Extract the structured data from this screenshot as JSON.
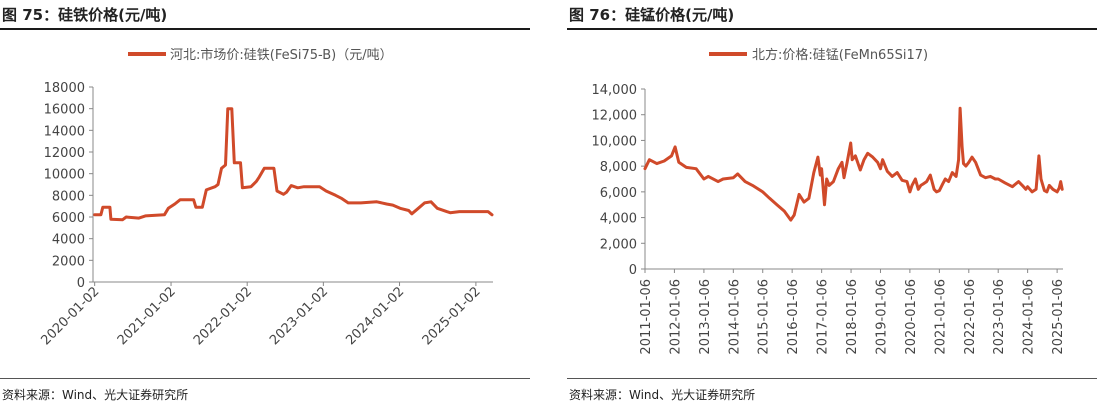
{
  "panels": [
    {
      "figure_title": "图 75：硅铁价格(元/吨)",
      "source": "资料来源：Wind、光大证券研究所"
    },
    {
      "figure_title": "图 76：硅锰价格(元/吨)",
      "source": "资料来源：Wind、光大证券研究所"
    }
  ],
  "chart_data": [
    {
      "type": "line",
      "line_color": "#d04a2a",
      "legend_position": "top",
      "grid": false,
      "ylim": [
        0,
        18000
      ],
      "y_ticks": [
        "0",
        "2000",
        "4000",
        "6000",
        "8000",
        "10000",
        "12000",
        "14000",
        "16000",
        "18000"
      ],
      "x_tick_labels": [
        "2020-01-02",
        "2021-01-02",
        "2022-01-02",
        "2023-01-02",
        "2024-01-02",
        "2025-01-02"
      ],
      "series": [
        {
          "name": "河北:市场价:硅铁(FeSi75-B)（元/吨）",
          "points": [
            [
              "2020-01-02",
              6200
            ],
            [
              "2020-02-01",
              6200
            ],
            [
              "2020-02-10",
              6900
            ],
            [
              "2020-03-15",
              6900
            ],
            [
              "2020-03-20",
              5800
            ],
            [
              "2020-05-15",
              5750
            ],
            [
              "2020-06-01",
              6000
            ],
            [
              "2020-08-01",
              5900
            ],
            [
              "2020-09-01",
              6100
            ],
            [
              "2020-12-01",
              6200
            ],
            [
              "2020-12-20",
              6800
            ],
            [
              "2021-01-20",
              7200
            ],
            [
              "2021-02-15",
              7600
            ],
            [
              "2021-04-20",
              7600
            ],
            [
              "2021-05-01",
              6900
            ],
            [
              "2021-06-01",
              6900
            ],
            [
              "2021-06-20",
              8500
            ],
            [
              "2021-08-01",
              8800
            ],
            [
              "2021-08-15",
              9000
            ],
            [
              "2021-09-01",
              10500
            ],
            [
              "2021-09-20",
              10800
            ],
            [
              "2021-10-01",
              16000
            ],
            [
              "2021-10-20",
              16000
            ],
            [
              "2021-11-01",
              11000
            ],
            [
              "2021-12-01",
              11000
            ],
            [
              "2021-12-10",
              8700
            ],
            [
              "2022-01-20",
              8800
            ],
            [
              "2022-02-15",
              9300
            ],
            [
              "2022-03-01",
              9700
            ],
            [
              "2022-03-25",
              10500
            ],
            [
              "2022-05-10",
              10500
            ],
            [
              "2022-05-25",
              8400
            ],
            [
              "2022-06-25",
              8100
            ],
            [
              "2022-07-10",
              8300
            ],
            [
              "2022-08-01",
              8900
            ],
            [
              "2022-09-01",
              8700
            ],
            [
              "2022-10-01",
              8800
            ],
            [
              "2022-12-15",
              8800
            ],
            [
              "2023-01-15",
              8400
            ],
            [
              "2023-03-01",
              8000
            ],
            [
              "2023-04-01",
              7700
            ],
            [
              "2023-05-01",
              7300
            ],
            [
              "2023-07-01",
              7300
            ],
            [
              "2023-09-15",
              7400
            ],
            [
              "2023-11-01",
              7200
            ],
            [
              "2023-12-01",
              7100
            ],
            [
              "2024-01-05",
              6800
            ],
            [
              "2024-02-15",
              6600
            ],
            [
              "2024-03-01",
              6300
            ],
            [
              "2024-04-01",
              6800
            ],
            [
              "2024-05-01",
              7300
            ],
            [
              "2024-06-01",
              7400
            ],
            [
              "2024-07-01",
              6800
            ],
            [
              "2024-08-15",
              6500
            ],
            [
              "2024-09-01",
              6400
            ],
            [
              "2024-10-15",
              6500
            ],
            [
              "2024-12-01",
              6500
            ],
            [
              "2025-02-01",
              6500
            ],
            [
              "2025-03-01",
              6500
            ],
            [
              "2025-03-20",
              6200
            ]
          ]
        }
      ]
    },
    {
      "type": "line",
      "line_color": "#d04a2a",
      "legend_position": "top",
      "grid": false,
      "ylim": [
        0,
        14000
      ],
      "y_ticks": [
        "0",
        "2,000",
        "4,000",
        "6,000",
        "8,000",
        "10,000",
        "12,000",
        "14,000"
      ],
      "x_tick_labels": [
        "2011-01-06",
        "2012-01-06",
        "2013-01-06",
        "2014-01-06",
        "2015-01-06",
        "2016-01-06",
        "2017-01-06",
        "2018-01-06",
        "2019-01-06",
        "2020-01-06",
        "2021-01-06",
        "2022-01-06",
        "2023-01-06",
        "2024-01-06",
        "2025-01-06"
      ],
      "series": [
        {
          "name": "北方:价格:硅锰(FeMn65Si17)",
          "points": [
            [
              "2011-01-06",
              7800
            ],
            [
              "2011-03-01",
              8500
            ],
            [
              "2011-06-01",
              8200
            ],
            [
              "2011-09-01",
              8400
            ],
            [
              "2011-12-01",
              8800
            ],
            [
              "2012-01-15",
              9500
            ],
            [
              "2012-03-01",
              8300
            ],
            [
              "2012-06-01",
              7900
            ],
            [
              "2012-10-01",
              7800
            ],
            [
              "2013-01-06",
              7000
            ],
            [
              "2013-03-01",
              7200
            ],
            [
              "2013-07-01",
              6800
            ],
            [
              "2013-09-01",
              7000
            ],
            [
              "2014-01-06",
              7100
            ],
            [
              "2014-03-01",
              7400
            ],
            [
              "2014-06-01",
              6800
            ],
            [
              "2014-09-01",
              6500
            ],
            [
              "2015-01-06",
              6000
            ],
            [
              "2015-04-01",
              5500
            ],
            [
              "2015-07-01",
              5000
            ],
            [
              "2015-10-01",
              4500
            ],
            [
              "2015-12-20",
              3800
            ],
            [
              "2016-02-01",
              4200
            ],
            [
              "2016-04-01",
              5800
            ],
            [
              "2016-06-01",
              5200
            ],
            [
              "2016-08-01",
              5500
            ],
            [
              "2016-10-01",
              7500
            ],
            [
              "2016-11-20",
              8700
            ],
            [
              "2016-12-20",
              7300
            ],
            [
              "2017-01-06",
              7800
            ],
            [
              "2017-02-10",
              5000
            ],
            [
              "2017-03-10",
              7000
            ],
            [
              "2017-04-10",
              6500
            ],
            [
              "2017-06-01",
              6800
            ],
            [
              "2017-08-01",
              7800
            ],
            [
              "2017-09-15",
              8300
            ],
            [
              "2017-10-10",
              7100
            ],
            [
              "2017-11-15",
              8200
            ],
            [
              "2018-01-01",
              9800
            ],
            [
              "2018-01-20",
              8500
            ],
            [
              "2018-03-01",
              8800
            ],
            [
              "2018-05-01",
              7700
            ],
            [
              "2018-06-15",
              8500
            ],
            [
              "2018-08-01",
              9000
            ],
            [
              "2018-10-01",
              8700
            ],
            [
              "2018-12-01",
              8300
            ],
            [
              "2019-01-06",
              7800
            ],
            [
              "2019-02-01",
              8500
            ],
            [
              "2019-04-01",
              7600
            ],
            [
              "2019-06-01",
              7200
            ],
            [
              "2019-08-01",
              7500
            ],
            [
              "2019-10-01",
              6900
            ],
            [
              "2019-12-01",
              6800
            ],
            [
              "2020-01-06",
              6000
            ],
            [
              "2020-02-01",
              6500
            ],
            [
              "2020-03-15",
              7000
            ],
            [
              "2020-04-20",
              6200
            ],
            [
              "2020-05-20",
              6500
            ],
            [
              "2020-06-15",
              6600
            ],
            [
              "2020-08-01",
              6800
            ],
            [
              "2020-09-15",
              7300
            ],
            [
              "2020-11-01",
              6200
            ],
            [
              "2020-12-01",
              6000
            ],
            [
              "2021-01-06",
              6100
            ],
            [
              "2021-02-15",
              6600
            ],
            [
              "2021-03-20",
              7000
            ],
            [
              "2021-05-01",
              6800
            ],
            [
              "2021-06-15",
              7500
            ],
            [
              "2021-08-01",
              7200
            ],
            [
              "2021-09-01",
              8500
            ],
            [
              "2021-09-20",
              12500
            ],
            [
              "2021-10-15",
              9500
            ],
            [
              "2021-11-01",
              8200
            ],
            [
              "2021-12-01",
              8000
            ],
            [
              "2022-01-06",
              8300
            ],
            [
              "2022-02-15",
              8700
            ],
            [
              "2022-04-01",
              8300
            ],
            [
              "2022-06-01",
              7300
            ],
            [
              "2022-08-01",
              7100
            ],
            [
              "2022-10-01",
              7200
            ],
            [
              "2022-12-01",
              7000
            ],
            [
              "2023-01-06",
              7000
            ],
            [
              "2023-04-01",
              6700
            ],
            [
              "2023-07-01",
              6400
            ],
            [
              "2023-09-15",
              6800
            ],
            [
              "2023-11-01",
              6500
            ],
            [
              "2023-12-15",
              6200
            ],
            [
              "2024-01-06",
              6400
            ],
            [
              "2024-03-01",
              6000
            ],
            [
              "2024-04-20",
              6200
            ],
            [
              "2024-05-25",
              8800
            ],
            [
              "2024-06-20",
              7000
            ],
            [
              "2024-08-01",
              6100
            ],
            [
              "2024-09-01",
              6000
            ],
            [
              "2024-10-01",
              6500
            ],
            [
              "2024-11-15",
              6200
            ],
            [
              "2025-01-06",
              6000
            ],
            [
              "2025-02-01",
              6300
            ],
            [
              "2025-02-20",
              6800
            ],
            [
              "2025-03-10",
              6200
            ]
          ]
        }
      ]
    }
  ]
}
